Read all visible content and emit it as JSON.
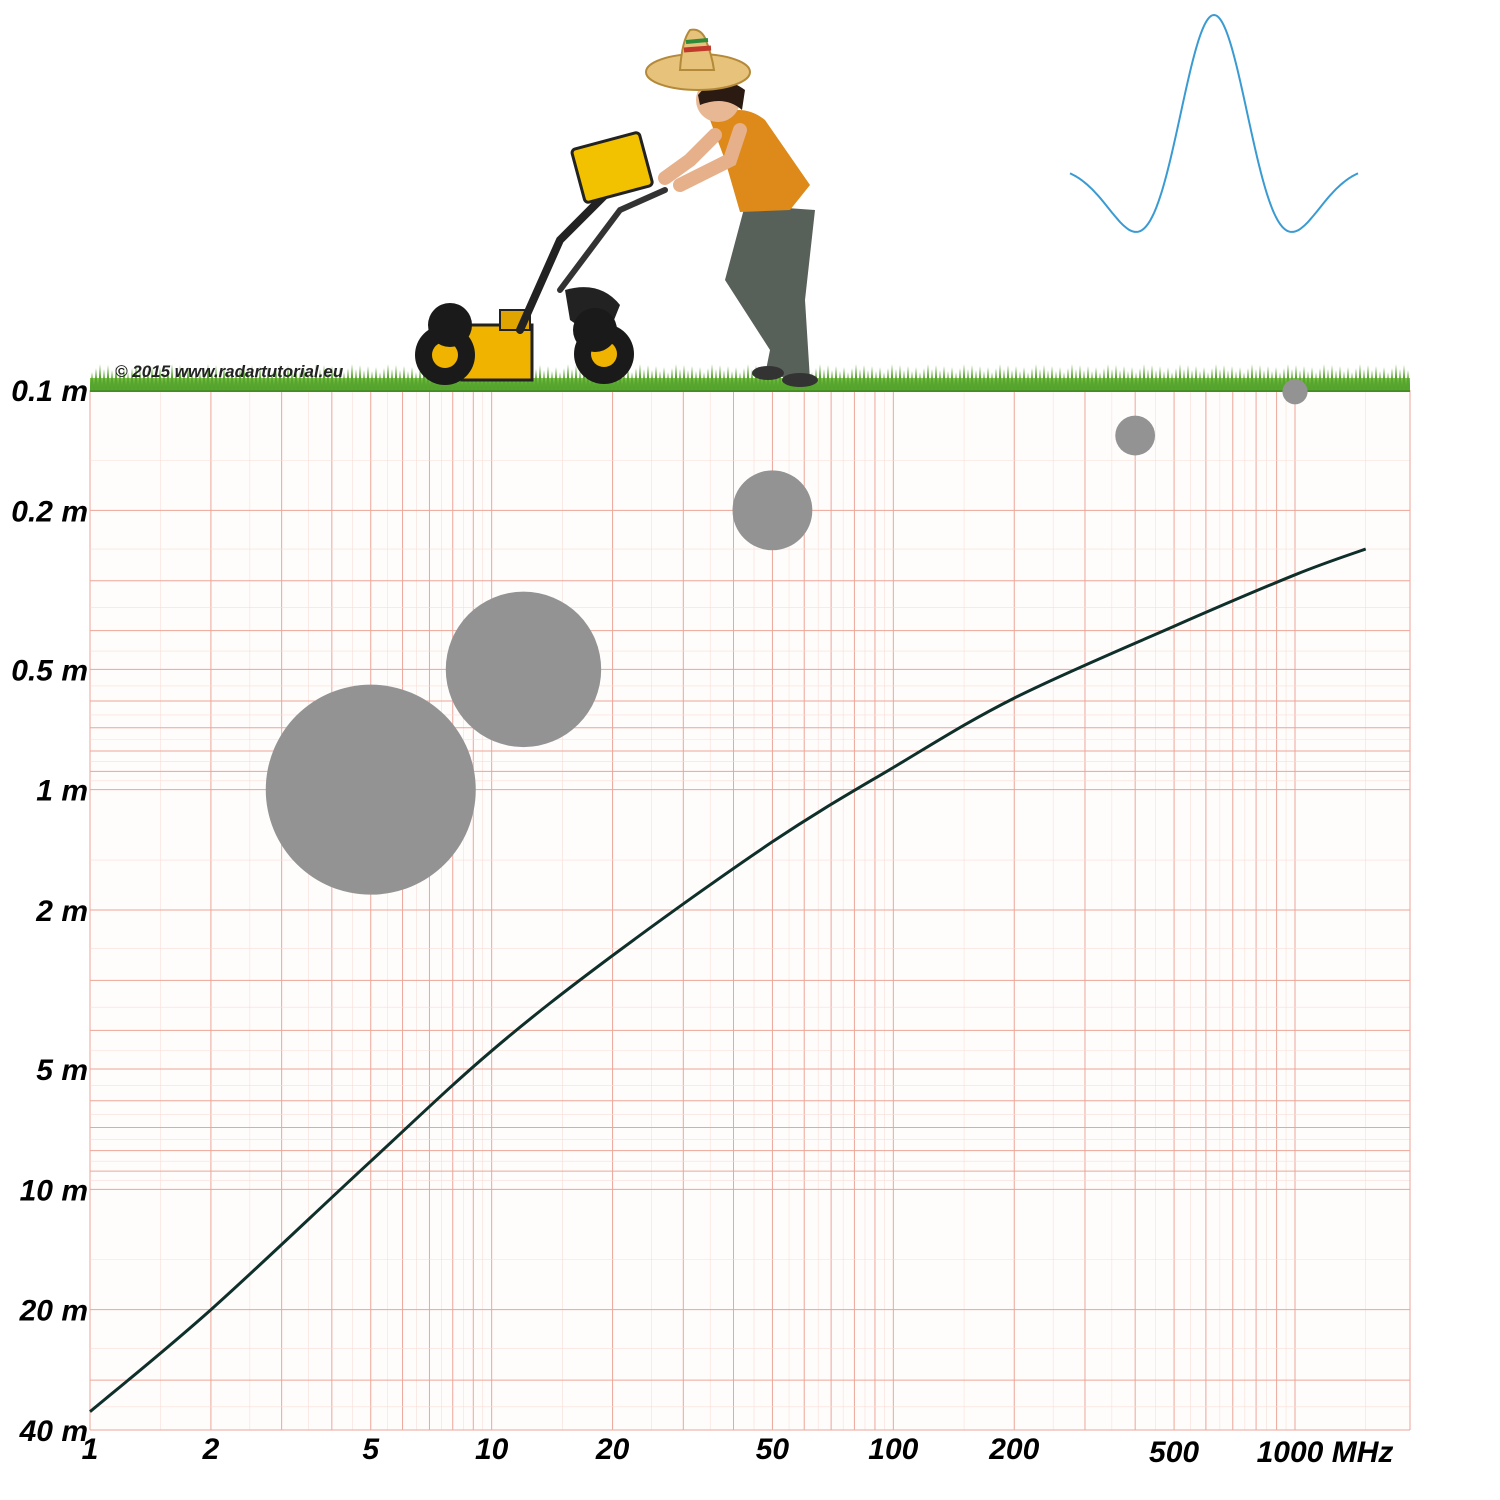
{
  "copyright": "© 2015 www.radartutorial.eu",
  "colors": {
    "grid_major": "#eda598",
    "grid_minor": "#f8ddd6",
    "curve": "#0f2f2a",
    "bubble": "#939393",
    "grass": "#56a52e",
    "pulse": "#3a9ad2"
  },
  "chart_data": {
    "type": "line",
    "x_scale": "log",
    "y_scale": "log",
    "y_inverted": true,
    "xlim": [
      1,
      1000
    ],
    "ylim": [
      0.1,
      40
    ],
    "x_ticks": [
      {
        "value": 1,
        "label": "1"
      },
      {
        "value": 2,
        "label": "2"
      },
      {
        "value": 5,
        "label": "5"
      },
      {
        "value": 10,
        "label": "10"
      },
      {
        "value": 20,
        "label": "20"
      },
      {
        "value": 50,
        "label": "50"
      },
      {
        "value": 100,
        "label": "100"
      },
      {
        "value": 200,
        "label": "200"
      },
      {
        "value": 500,
        "label": "500"
      },
      {
        "value": 1000,
        "label": "1000 MHz"
      }
    ],
    "y_ticks": [
      {
        "value": 0.1,
        "label": "0.1 m"
      },
      {
        "value": 0.2,
        "label": "0.2 m"
      },
      {
        "value": 0.5,
        "label": "0.5 m"
      },
      {
        "value": 1,
        "label": "1 m"
      },
      {
        "value": 2,
        "label": "2 m"
      },
      {
        "value": 5,
        "label": "5 m"
      },
      {
        "value": 10,
        "label": "10 m"
      },
      {
        "value": 20,
        "label": "20 m"
      },
      {
        "value": 40,
        "label": "40 m"
      }
    ],
    "grid": true,
    "series": [
      {
        "points": [
          {
            "x": 1,
            "y": 36
          },
          {
            "x": 2,
            "y": 20
          },
          {
            "x": 5,
            "y": 8.5
          },
          {
            "x": 10,
            "y": 4.5
          },
          {
            "x": 20,
            "y": 2.6
          },
          {
            "x": 50,
            "y": 1.35
          },
          {
            "x": 100,
            "y": 0.88
          },
          {
            "x": 200,
            "y": 0.59
          },
          {
            "x": 500,
            "y": 0.39
          },
          {
            "x": 1000,
            "y": 0.29
          },
          {
            "x": 1500,
            "y": 0.25
          }
        ]
      }
    ],
    "bubbles": [
      {
        "x": 5,
        "y": 1.0,
        "size": 1.0
      },
      {
        "x": 12,
        "y": 0.5,
        "size": 0.74
      },
      {
        "x": 50,
        "y": 0.2,
        "size": 0.38
      },
      {
        "x": 400,
        "y": 0.13,
        "size": 0.19
      },
      {
        "x": 1000,
        "y": 0.101,
        "size": 0.12
      }
    ]
  }
}
